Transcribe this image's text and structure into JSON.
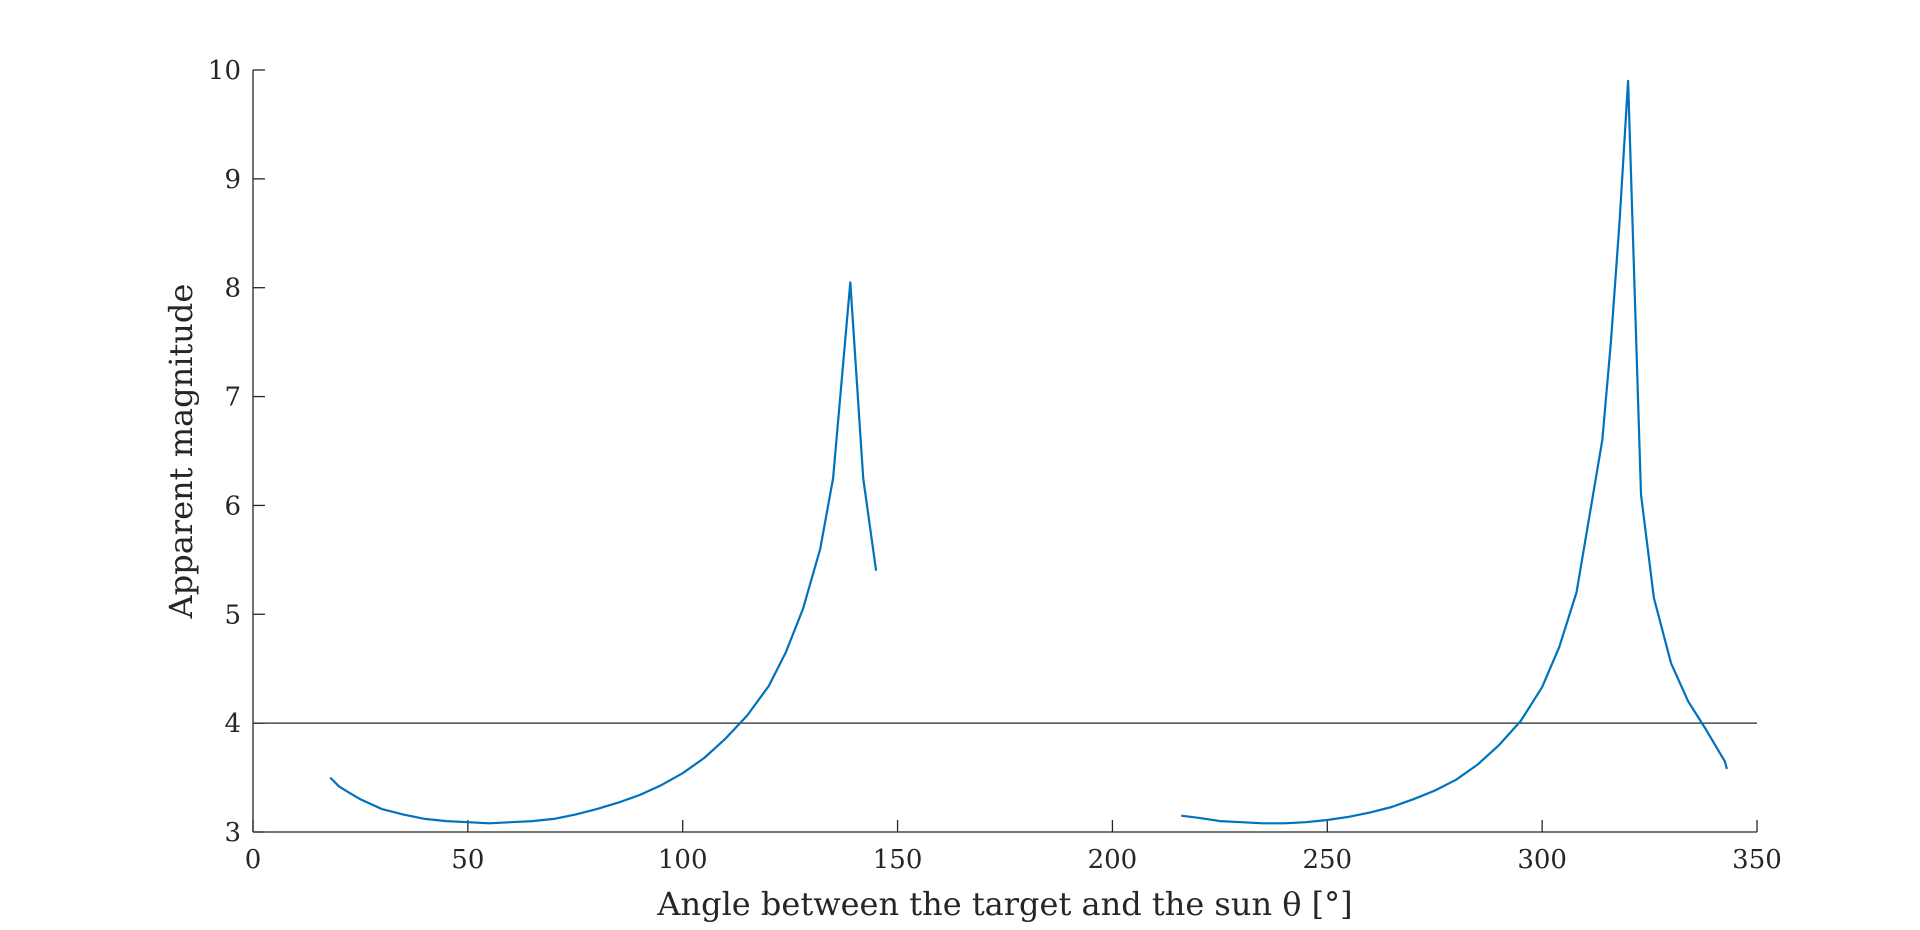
{
  "chart_data": {
    "type": "line",
    "title": "",
    "xlabel": "Angle between the target and the sun θ   [°]",
    "ylabel": "Apparent magnitude",
    "xlim": [
      0,
      350
    ],
    "ylim": [
      3,
      10
    ],
    "xticks": [
      "0",
      "50",
      "100",
      "150",
      "200",
      "250",
      "300",
      "350"
    ],
    "yticks": [
      "3",
      "4",
      "5",
      "6",
      "7",
      "8",
      "9",
      "10"
    ],
    "grid": false,
    "colors": {
      "series": "#0072BD",
      "axis": "#262626",
      "reference": "#262626"
    },
    "reference_lines": [
      {
        "y": 4
      }
    ],
    "series": [
      {
        "segments": [
          {
            "x": [
              18,
              20,
              22,
              25,
              30,
              35,
              40,
              45,
              50,
              55,
              60,
              65,
              70,
              75,
              80,
              85,
              90,
              95,
              100,
              105,
              110,
              115,
              120,
              124,
              128,
              132,
              135,
              139,
              142,
              145
            ],
            "y": [
              3.5,
              3.42,
              3.37,
              3.3,
              3.21,
              3.16,
              3.12,
              3.1,
              3.09,
              3.08,
              3.09,
              3.1,
              3.12,
              3.16,
              3.21,
              3.27,
              3.34,
              3.43,
              3.54,
              3.68,
              3.86,
              4.07,
              4.34,
              4.65,
              5.05,
              5.6,
              6.25,
              8.05,
              6.25,
              5.4
            ]
          },
          {
            "x": [
              216,
              220,
              225,
              230,
              235,
              240,
              245,
              250,
              255,
              260,
              265,
              270,
              275,
              280,
              285,
              290,
              295,
              300,
              304,
              308,
              311,
              314,
              316,
              318,
              320,
              323,
              326,
              330,
              334,
              338,
              341,
              342.5,
              343
            ],
            "y": [
              3.15,
              3.13,
              3.1,
              3.09,
              3.08,
              3.08,
              3.09,
              3.11,
              3.14,
              3.18,
              3.23,
              3.3,
              3.38,
              3.48,
              3.62,
              3.8,
              4.02,
              4.33,
              4.7,
              5.2,
              5.9,
              6.6,
              7.5,
              8.6,
              9.9,
              6.1,
              5.15,
              4.55,
              4.2,
              3.95,
              3.75,
              3.65,
              3.58
            ]
          }
        ]
      }
    ]
  }
}
